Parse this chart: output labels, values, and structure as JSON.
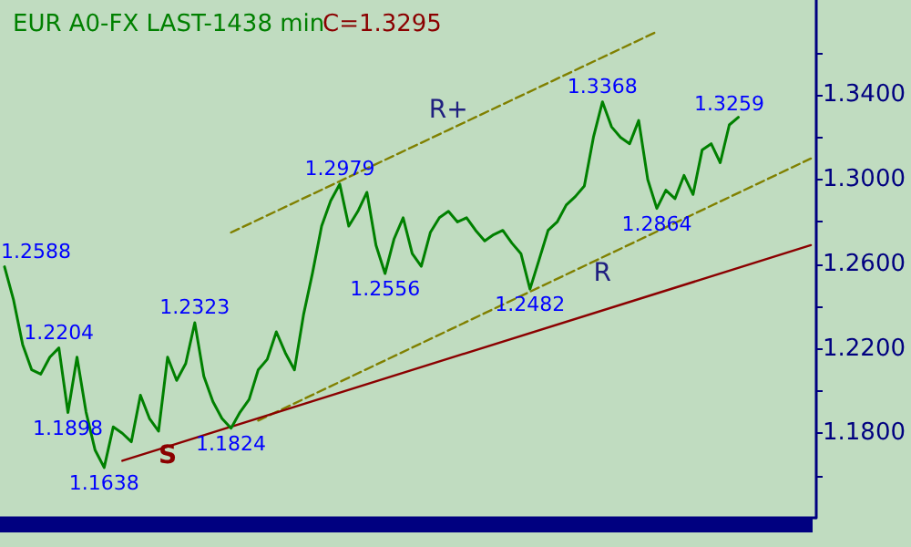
{
  "chart_data": {
    "type": "line",
    "title": "EUR A0-FX LAST-1438 min",
    "subtitle": "C=1.3295",
    "categories": [
      null,
      null,
      null,
      null,
      null,
      null,
      null,
      null,
      null,
      null,
      null,
      null,
      null,
      null,
      null,
      null,
      null,
      null,
      null,
      null,
      null,
      null,
      null,
      null,
      null,
      null,
      null,
      null,
      null,
      null,
      null,
      null,
      null,
      null,
      null,
      null,
      null,
      null,
      null,
      null,
      null,
      null,
      null,
      null,
      null,
      null,
      null,
      null,
      null,
      null,
      null,
      null,
      null,
      null,
      null,
      null,
      null,
      null,
      null,
      null,
      null,
      null,
      null,
      null,
      null,
      null,
      null,
      null,
      null,
      null,
      null,
      null,
      null,
      null,
      null,
      null,
      null,
      null,
      null,
      null,
      null,
      null,
      null,
      null,
      null,
      null,
      null,
      null,
      null,
      null
    ],
    "series": [
      {
        "color": "#008000",
        "values": [
          1.2588,
          1.243,
          1.222,
          1.21,
          1.208,
          1.216,
          1.2204,
          1.1898,
          1.216,
          1.19,
          1.172,
          1.1638,
          1.183,
          1.18,
          1.176,
          1.198,
          1.187,
          1.181,
          1.216,
          1.205,
          1.213,
          1.2323,
          1.207,
          1.195,
          1.187,
          1.1824,
          1.19,
          1.196,
          1.21,
          1.215,
          1.228,
          1.218,
          1.21,
          1.236,
          1.256,
          1.278,
          1.29,
          1.2979,
          1.278,
          1.285,
          1.294,
          1.269,
          1.2556,
          1.272,
          1.282,
          1.265,
          1.259,
          1.275,
          1.282,
          1.285,
          1.28,
          1.282,
          1.276,
          1.271,
          1.274,
          1.276,
          1.27,
          1.265,
          1.2482,
          1.262,
          1.276,
          1.28,
          1.288,
          1.292,
          1.297,
          1.32,
          1.3368,
          1.325,
          1.32,
          1.317,
          1.328,
          1.3,
          1.2864,
          1.295,
          1.291,
          1.302,
          1.293,
          1.314,
          1.317,
          1.308,
          1.3259,
          1.3295,
          null,
          null,
          null,
          null,
          null,
          null,
          null,
          null
        ]
      },
      {
        "name": "R+",
        "color": "#808000",
        "line_style": "dashed",
        "values": [
          null,
          null,
          null,
          null,
          null,
          null,
          null,
          null,
          null,
          null,
          null,
          null,
          null,
          null,
          null,
          null,
          null,
          null,
          null,
          null,
          null,
          null,
          null,
          null,
          null,
          1.275,
          null,
          null,
          null,
          null,
          null,
          null,
          null,
          null,
          null,
          null,
          null,
          null,
          null,
          null,
          null,
          null,
          null,
          null,
          null,
          null,
          null,
          null,
          null,
          null,
          null,
          null,
          null,
          null,
          null,
          null,
          null,
          null,
          null,
          null,
          null,
          null,
          null,
          null,
          null,
          null,
          null,
          null,
          null,
          null,
          null,
          null,
          1.37,
          null,
          null,
          null,
          null,
          null,
          null,
          null,
          null,
          null,
          null,
          null,
          null,
          null,
          null,
          null,
          null,
          null
        ]
      },
      {
        "name": "R",
        "color": "#808000",
        "line_style": "dashed",
        "values": [
          null,
          null,
          null,
          null,
          null,
          null,
          null,
          null,
          null,
          null,
          null,
          null,
          null,
          null,
          null,
          null,
          null,
          null,
          null,
          null,
          null,
          null,
          null,
          null,
          null,
          null,
          null,
          null,
          1.186,
          null,
          null,
          null,
          null,
          null,
          null,
          null,
          null,
          null,
          null,
          null,
          null,
          null,
          null,
          null,
          null,
          null,
          null,
          null,
          null,
          null,
          null,
          null,
          null,
          null,
          null,
          null,
          null,
          null,
          null,
          null,
          null,
          null,
          null,
          null,
          null,
          null,
          null,
          null,
          null,
          null,
          null,
          null,
          null,
          null,
          null,
          null,
          null,
          null,
          null,
          null,
          null,
          null,
          null,
          null,
          null,
          null,
          null,
          null,
          null,
          1.31
        ]
      },
      {
        "name": "S",
        "color": "#8b0000",
        "line_style": "solid",
        "values": [
          null,
          null,
          null,
          null,
          null,
          null,
          null,
          null,
          null,
          null,
          null,
          null,
          null,
          1.167,
          null,
          null,
          null,
          null,
          null,
          null,
          null,
          null,
          null,
          null,
          null,
          null,
          null,
          null,
          null,
          null,
          null,
          null,
          null,
          null,
          null,
          null,
          null,
          null,
          null,
          null,
          null,
          null,
          null,
          null,
          null,
          null,
          null,
          null,
          null,
          null,
          null,
          null,
          null,
          null,
          null,
          null,
          null,
          null,
          null,
          null,
          null,
          null,
          null,
          null,
          null,
          null,
          null,
          null,
          null,
          null,
          null,
          null,
          null,
          null,
          null,
          null,
          null,
          null,
          null,
          null,
          null,
          null,
          null,
          null,
          null,
          null,
          null,
          null,
          null,
          1.269
        ]
      }
    ],
    "annotations": [
      "1.2588",
      {
        "text": "1.2204",
        "y": 1.2204
      },
      {
        "text": "1.1898",
        "y": 1.1898
      },
      {
        "text": "1.1638",
        "y": 1.1638
      },
      {
        "text": "1.2323",
        "y": 1.2323
      },
      {
        "text": "1.1824",
        "y": 1.1824
      },
      {
        "text": "1.2979",
        "y": 1.2979
      },
      {
        "text": "1.2556",
        "y": 1.2556
      },
      {
        "text": "1.2482",
        "y": 1.2482
      },
      {
        "text": "1.3368",
        "y": 1.3368
      },
      {
        "text": "1.2864",
        "y": 1.2864
      },
      {
        "text": "1.3259",
        "y": 1.3259
      }
    ],
    "ylim": [
      1.14,
      1.385
    ],
    "yticks": [
      {
        "value": 1.16,
        "label": null
      },
      {
        "value": 1.18,
        "label": "1.1800"
      },
      {
        "value": 1.2,
        "label": null
      },
      {
        "value": 1.22,
        "label": "1.2200"
      },
      {
        "value": 1.24,
        "label": null
      },
      {
        "value": 1.26,
        "label": "1.2600"
      },
      {
        "value": 1.28,
        "label": null
      },
      {
        "value": 1.3,
        "label": "1.3000"
      },
      {
        "value": 1.32,
        "label": null
      },
      {
        "value": 1.34,
        "label": "1.3400"
      },
      {
        "value": 1.36,
        "label": null
      }
    ],
    "tick_labels": "y"
  }
}
